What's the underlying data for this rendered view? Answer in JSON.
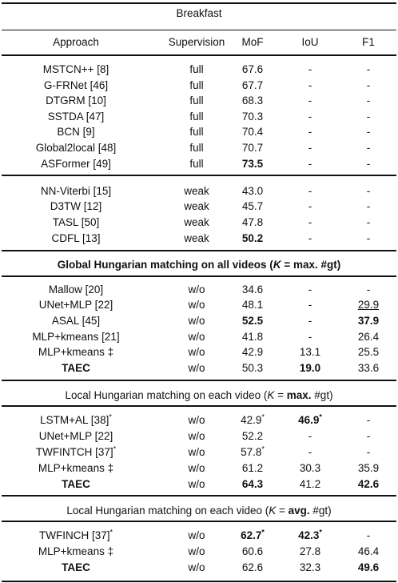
{
  "header": {
    "dataset": "Breakfast",
    "columns": [
      "Approach",
      "Supervision",
      "MoF",
      "IoU",
      "F1"
    ]
  },
  "sections": [
    {
      "title": "",
      "rows": [
        [
          "MSTCN++ [8]",
          "full",
          "67.6",
          "-",
          "-"
        ],
        [
          "G-FRNet [46]",
          "full",
          "67.7",
          "-",
          "-"
        ],
        [
          "DTGRM [10]",
          "full",
          "68.3",
          "-",
          "-"
        ],
        [
          "SSTDA [47]",
          "full",
          "70.3",
          "-",
          "-"
        ],
        [
          "BCN [9]",
          "full",
          "70.4",
          "-",
          "-"
        ],
        [
          "Global2local [48]",
          "full",
          "70.7",
          "-",
          "-"
        ],
        [
          "ASFormer [49]",
          "full",
          "73.5",
          "-",
          "-"
        ]
      ]
    },
    {
      "title": "",
      "rows": [
        [
          "NN-Viterbi [15]",
          "weak",
          "43.0",
          "-",
          "-"
        ],
        [
          "D3TW [12]",
          "weak",
          "45.7",
          "-",
          "-"
        ],
        [
          "TASL [50]",
          "weak",
          "47.8",
          "-",
          "-"
        ],
        [
          "CDFL [13]",
          "weak",
          "50.2",
          "-",
          "-"
        ]
      ]
    },
    {
      "title": "Global Hungarian matching on all videos (K = max. #gt)",
      "rows": [
        [
          "Mallow [20]",
          "w/o",
          "34.6",
          "-",
          "-"
        ],
        [
          "UNet+MLP [22]",
          "w/o",
          "48.1",
          "-",
          "29.9"
        ],
        [
          "ASAL [45]",
          "w/o",
          "52.5",
          "-",
          "37.9"
        ],
        [
          "MLP+kmeans [21]",
          "w/o",
          "41.8",
          "-",
          "26.4"
        ],
        [
          "MLP+kmeans ‡",
          "w/o",
          "42.9",
          "13.1",
          "25.5"
        ],
        [
          "TAEC",
          "w/o",
          "50.3",
          "19.0",
          "33.6"
        ]
      ]
    },
    {
      "title": "Local Hungarian matching on each video (K = max. #gt)",
      "rows": [
        [
          "LSTM+AL [38]*",
          "w/o",
          "42.9*",
          "46.9*",
          "-"
        ],
        [
          "UNet+MLP [22]",
          "w/o",
          "52.2",
          "-",
          "-"
        ],
        [
          "TWFINTCH [37]*",
          "w/o",
          "57.8*",
          "-",
          "-"
        ],
        [
          "MLP+kmeans ‡",
          "w/o",
          "61.2",
          "30.3",
          "35.9"
        ],
        [
          "TAEC",
          "w/o",
          "64.3",
          "41.2",
          "42.6"
        ]
      ]
    },
    {
      "title": "Local Hungarian matching on each video (K = avg. #gt)",
      "rows": [
        [
          "TWFINCH [37]*",
          "w/o",
          "62.7*",
          "42.3*",
          "-"
        ],
        [
          "MLP+kmeans ‡",
          "w/o",
          "60.6",
          "27.8",
          "46.4"
        ],
        [
          "TAEC",
          "w/o",
          "62.6",
          "32.3",
          "49.6"
        ]
      ]
    }
  ]
}
